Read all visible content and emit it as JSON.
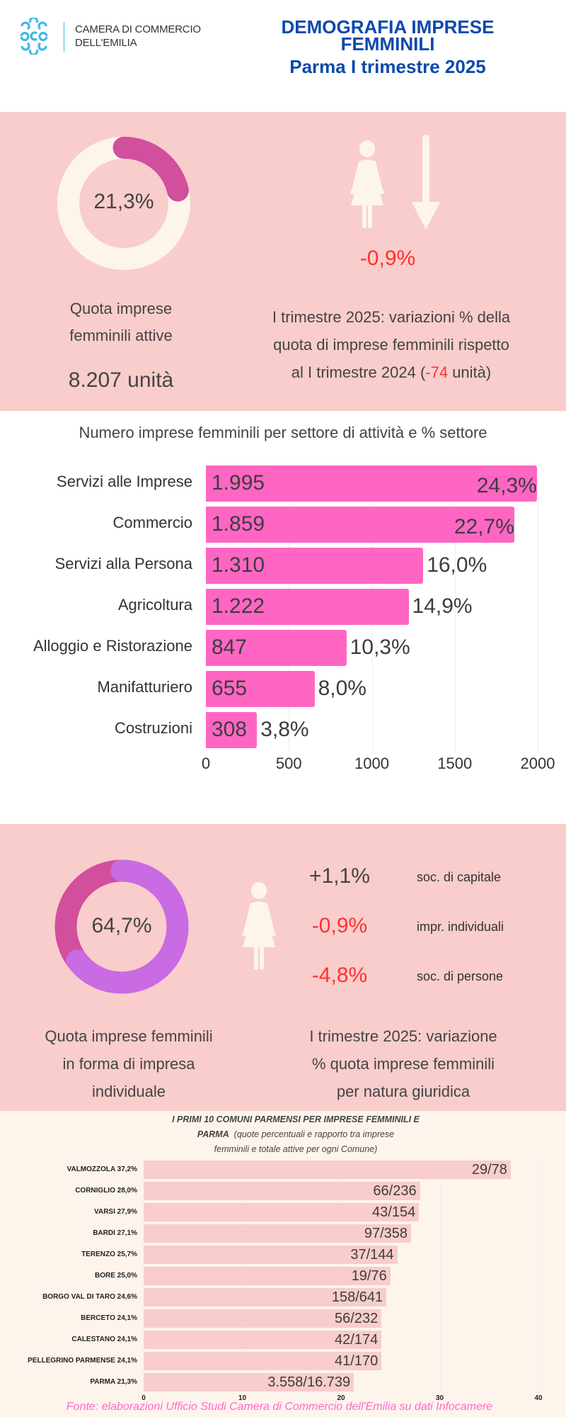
{
  "colors": {
    "pink_bg": "#f8cdcb",
    "cream": "#fdf5ec",
    "magenta": "#d14f9c",
    "purple": "#c96be3",
    "bar_pink": "#ff66c4",
    "red": "#ff3131",
    "blue": "#0b49ad",
    "logo_blue": "#3fb8e6",
    "source_pink": "#ff69c8"
  },
  "header": {
    "logo_line1": "CAMERA DI COMMERCIO",
    "logo_line2": "DELL'EMILIA",
    "title_lines": [
      "DEMOGRAFIA IMPRESE",
      "FEMMINILI",
      "Parma I trimestre 2025"
    ]
  },
  "section1": {
    "donut_label": "21,3%",
    "donut_percent": 21.3,
    "change": "-0,9%",
    "share_label_lines": [
      "Quota imprese",
      "femminili attive"
    ],
    "units": "8.207 unità",
    "desc_line1": "I trimestre 2025: variazioni % della",
    "desc_line2": "quota di imprese femminili rispetto",
    "desc_line3_prefix": "al I trimestre 2024 (",
    "desc_line3_highlight": "-74",
    "desc_line3_suffix": " unità)"
  },
  "chart_data": [
    {
      "type": "bar",
      "orientation": "horizontal",
      "title": "Numero imprese femminili per settore di attività e % settore",
      "categories": [
        "Servizi alle Imprese",
        "Commercio",
        "Servizi alla Persona",
        "Agricoltura",
        "Alloggio e Ristorazione",
        "Manifatturiero",
        "Costruzioni"
      ],
      "values": [
        1995,
        1859,
        1310,
        1222,
        847,
        655,
        308
      ],
      "value_labels": [
        "1.995",
        "1.859",
        "1.310",
        "1.222",
        "847",
        "655",
        "308"
      ],
      "percent_labels": [
        "24,3%",
        "22,7%",
        "16,0%",
        "14,9%",
        "10,3%",
        "8,0%",
        "3,8%"
      ],
      "xticks": [
        "0",
        "500",
        "1000",
        "1500",
        "2000"
      ],
      "xlim": [
        0,
        2000
      ],
      "grid": true
    },
    {
      "type": "bar",
      "orientation": "horizontal",
      "title_line1": "I PRIMI 10 COMUNI PARMENSI PER IMPRESE FEMMINILI E",
      "title_line2_bold": "PARMA",
      "title_line2_rest": "(quote percentuali e rapporto tra imprese",
      "title_line3": "femminili e totale attive per ogni Comune)",
      "categories": [
        "VALMOZZOLA 37,2%",
        "CORNIGLIO 28,0%",
        "VARSI 27,9%",
        "BARDI 27,1%",
        "TERENZO 25,7%",
        "BORE 25,0%",
        "BORGO VAL DI TARO 24,6%",
        "BERCETO 24,1%",
        "CALESTANO 24,1%",
        "PELLEGRINO PARMENSE 24,1%",
        "PARMA 21,3%"
      ],
      "values": [
        37.2,
        28.0,
        27.9,
        27.1,
        25.7,
        25.0,
        24.6,
        24.1,
        24.1,
        24.1,
        21.3
      ],
      "bar_labels": [
        "29/78",
        "66/236",
        "43/154",
        "97/358",
        "37/144",
        "19/76",
        "158/641",
        "56/232",
        "42/174",
        "41/170",
        "3.558/16.739"
      ],
      "xticks": [
        "0",
        "10",
        "20",
        "30",
        "40"
      ],
      "xlim": [
        0,
        40
      ],
      "grid": true
    }
  ],
  "section3": {
    "donut_label": "64,7%",
    "donut_percent": 64.7,
    "changes": [
      {
        "value": "+1,1%",
        "label": "soc. di capitale",
        "negative": false
      },
      {
        "value": "-0,9%",
        "label": "impr. individuali",
        "negative": true
      },
      {
        "value": "-4,8%",
        "label": "soc. di persone",
        "negative": true
      }
    ],
    "left_lines": [
      "Quota imprese femminili",
      "in forma di impresa",
      "individuale"
    ],
    "right_lines": [
      "I trimestre 2025: variazione",
      "% quota imprese femminili",
      "per natura giuridica"
    ]
  },
  "footer": {
    "source": "Fonte: elaborazioni Ufficio Studi Camera di Commercio  dell'Emilia su dati Infocamere"
  }
}
